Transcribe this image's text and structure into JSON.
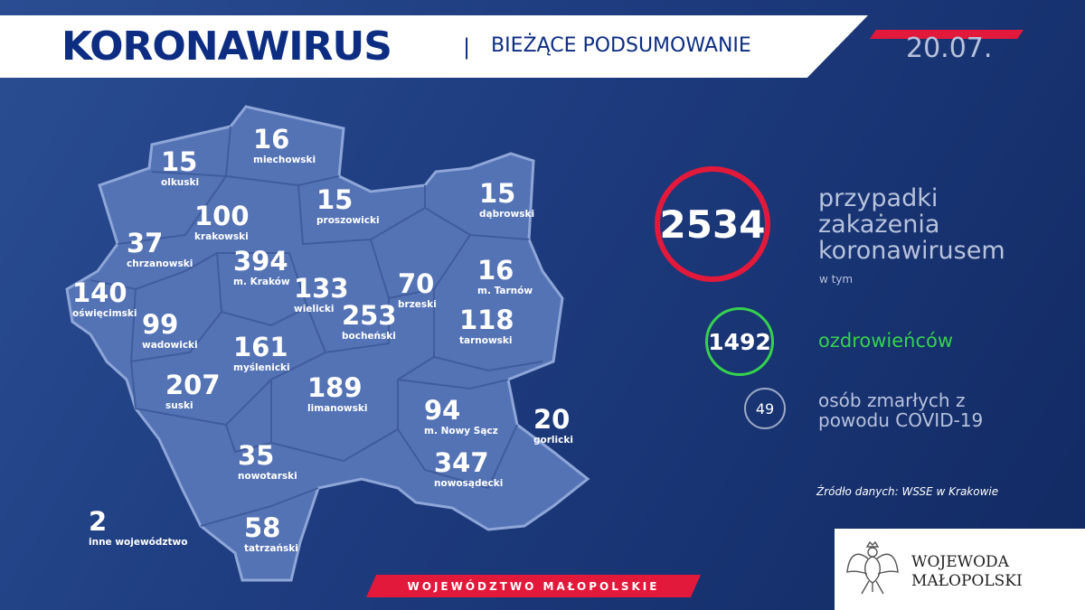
{
  "header": {
    "title": "KORONAWIRUS",
    "separator": "|",
    "subtitle": "BIEŻĄCE PODSUMOWANIE",
    "date": "20.07."
  },
  "colors": {
    "accent_red": "#e3193b",
    "recovered_green": "#35d24e",
    "map_fill": "#5473b5",
    "header_blue": "#0c2d82"
  },
  "districts": [
    {
      "value": "15",
      "name": "olkuski"
    },
    {
      "value": "16",
      "name": "miechowski"
    },
    {
      "value": "100",
      "name": "krakowski"
    },
    {
      "value": "15",
      "name": "proszowicki"
    },
    {
      "value": "15",
      "name": "dąbrowski"
    },
    {
      "value": "37",
      "name": "chrzanowski"
    },
    {
      "value": "394",
      "name": "m. Kraków"
    },
    {
      "value": "133",
      "name": "wielicki"
    },
    {
      "value": "70",
      "name": "brzeski"
    },
    {
      "value": "16",
      "name": "m. Tarnów"
    },
    {
      "value": "140",
      "name": "oświęcimski"
    },
    {
      "value": "99",
      "name": "wadowicki"
    },
    {
      "value": "253",
      "name": "bocheński"
    },
    {
      "value": "118",
      "name": "tarnowski"
    },
    {
      "value": "161",
      "name": "myślenicki"
    },
    {
      "value": "207",
      "name": "suski"
    },
    {
      "value": "189",
      "name": "limanowski"
    },
    {
      "value": "94",
      "name": "m. Nowy Sącz"
    },
    {
      "value": "20",
      "name": "gorlicki"
    },
    {
      "value": "35",
      "name": "nowotarski"
    },
    {
      "value": "347",
      "name": "nowosądecki"
    },
    {
      "value": "2",
      "name": "inne województwo"
    },
    {
      "value": "58",
      "name": "tatrzański"
    }
  ],
  "summary": {
    "cases": "2534",
    "cases_label": "przypadki zakażenia koronawirusem",
    "of_which": "w tym",
    "recovered": "1492",
    "recovered_label": "ozdrowieńców",
    "deaths": "49",
    "deaths_label": "osób zmarłych z powodu COVID-19",
    "source": "Źródło danych: WSSE w Krakowie"
  },
  "footer": {
    "region": "WOJEWÓDZTWO MAŁOPOLSKIE",
    "logo_line1": "WOJEWODA",
    "logo_line2": "MAŁOPOLSKI"
  }
}
